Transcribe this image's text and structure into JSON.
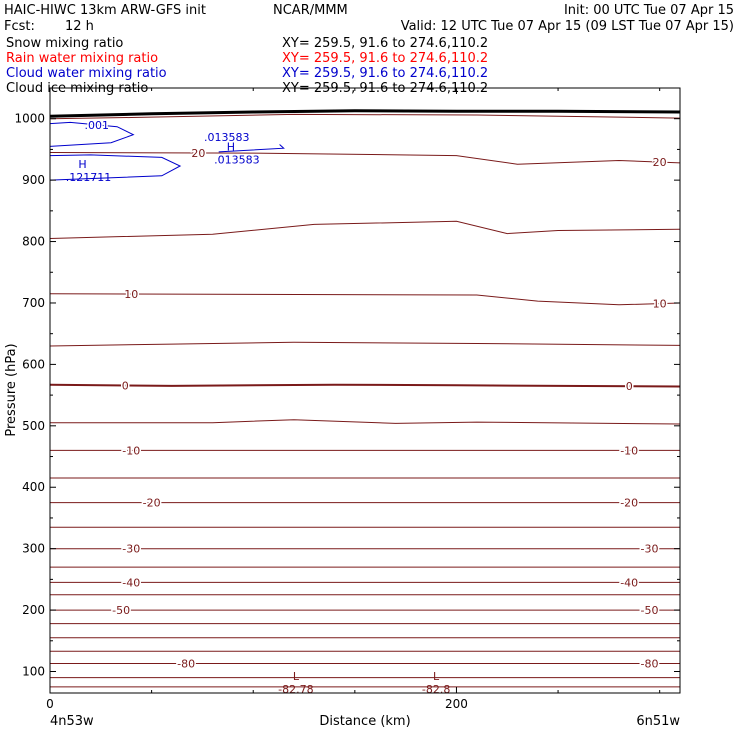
{
  "header": {
    "title_left": "HAIC-HIWC 13km ARW-GFS init",
    "org": "NCAR/MMM",
    "init": "Init: 00 UTC Tue 07 Apr 15",
    "fcst_label": "Fcst:",
    "fcst_value": "12 h",
    "valid": "Valid: 12 UTC Tue 07 Apr 15 (09 LST Tue 07 Apr 15)"
  },
  "fields": [
    {
      "name": "Snow mixing ratio",
      "xy": "XY= 259.5, 91.6 to 274.6,110.2",
      "color": "#000000"
    },
    {
      "name": "Rain water mixing ratio",
      "xy": "XY= 259.5, 91.6 to 274.6,110.2",
      "color": "#ff0000"
    },
    {
      "name": "Cloud water mixing ratio",
      "xy": "XY= 259.5, 91.6 to 274.6,110.2",
      "color": "#0000cc"
    },
    {
      "name": "Cloud ice mixing ratio",
      "xy": "XY= 259.5, 91.6 to 274.6,110.2",
      "color": "#000000"
    }
  ],
  "chart_data": {
    "type": "line",
    "subtype": "vertical cross-section contour plot",
    "xlabel": "Distance (km)",
    "ylabel": "Pressure (hPa)",
    "xlim": [
      0,
      310
    ],
    "ylim": [
      1050,
      65
    ],
    "x_ticks": [
      0,
      200
    ],
    "y_ticks": [
      100,
      200,
      300,
      400,
      500,
      600,
      700,
      800,
      900,
      1000
    ],
    "endpoint_left": "4n53w",
    "endpoint_right": "6n51w",
    "colors": {
      "temperature": "#7a1a1a",
      "cloud_water": "#0000cc",
      "ground": "#000000"
    },
    "temperature_contours": [
      {
        "level": -80,
        "label": "-80",
        "labels_at": [
          67,
          295
        ],
        "points": [
          [
            0,
            113
          ],
          [
            310,
            113
          ]
        ]
      },
      {
        "level": -50,
        "label": "-50",
        "labels_at": [
          35,
          295
        ],
        "points": [
          [
            0,
            200
          ],
          [
            310,
            200
          ]
        ]
      },
      {
        "level": -40,
        "label": "-40",
        "labels_at": [
          40,
          285
        ],
        "points": [
          [
            0,
            245
          ],
          [
            310,
            245
          ]
        ]
      },
      {
        "level": -30,
        "label": "-30",
        "labels_at": [
          40,
          295
        ],
        "points": [
          [
            0,
            300
          ],
          [
            310,
            300
          ]
        ]
      },
      {
        "level": -20,
        "label": "-20",
        "labels_at": [
          50,
          285
        ],
        "points": [
          [
            0,
            375
          ],
          [
            310,
            375
          ]
        ]
      },
      {
        "level": -10,
        "label": "-10",
        "labels_at": [
          40,
          285
        ],
        "points": [
          [
            0,
            460
          ],
          [
            310,
            460
          ]
        ]
      },
      {
        "level": 0,
        "label": "0",
        "labels_at": [
          37,
          285
        ],
        "points": [
          [
            0,
            567
          ],
          [
            60,
            565
          ],
          [
            140,
            567
          ],
          [
            200,
            566
          ],
          [
            310,
            564
          ]
        ]
      },
      {
        "level": 10,
        "label": "10",
        "labels_at": [
          40,
          300
        ],
        "points": [
          [
            0,
            715
          ],
          [
            100,
            714
          ],
          [
            210,
            713
          ],
          [
            240,
            703
          ],
          [
            280,
            697
          ],
          [
            310,
            700
          ]
        ]
      },
      {
        "level": 20,
        "label": "20",
        "labels_at": [
          73,
          300
        ],
        "points": [
          [
            0,
            945
          ],
          [
            100,
            944
          ],
          [
            200,
            940
          ],
          [
            230,
            926
          ],
          [
            280,
            932
          ],
          [
            310,
            928
          ]
        ]
      }
    ],
    "temperature_unlabeled": [
      {
        "points": [
          [
            0,
            75
          ],
          [
            310,
            75
          ]
        ]
      },
      {
        "points": [
          [
            0,
            90
          ],
          [
            310,
            90
          ]
        ]
      },
      {
        "points": [
          [
            0,
            133
          ],
          [
            310,
            133
          ]
        ]
      },
      {
        "points": [
          [
            0,
            155
          ],
          [
            310,
            155
          ]
        ]
      },
      {
        "points": [
          [
            0,
            178
          ],
          [
            310,
            178
          ]
        ]
      },
      {
        "points": [
          [
            0,
            225
          ],
          [
            310,
            225
          ]
        ]
      },
      {
        "points": [
          [
            0,
            270
          ],
          [
            310,
            270
          ]
        ]
      },
      {
        "points": [
          [
            0,
            335
          ],
          [
            310,
            335
          ]
        ]
      },
      {
        "points": [
          [
            0,
            415
          ],
          [
            310,
            415
          ]
        ]
      },
      {
        "points": [
          [
            0,
            505
          ],
          [
            80,
            505
          ],
          [
            120,
            510
          ],
          [
            170,
            504
          ],
          [
            210,
            506
          ],
          [
            310,
            503
          ]
        ]
      },
      {
        "points": [
          [
            0,
            630
          ],
          [
            60,
            633
          ],
          [
            120,
            636
          ],
          [
            210,
            634
          ],
          [
            310,
            631
          ]
        ]
      },
      {
        "points": [
          [
            0,
            805
          ],
          [
            80,
            812
          ],
          [
            130,
            828
          ],
          [
            200,
            833
          ],
          [
            225,
            813
          ],
          [
            250,
            818
          ],
          [
            310,
            820
          ]
        ]
      },
      {
        "points": [
          [
            0,
            1000
          ],
          [
            40,
            1002
          ],
          [
            120,
            1007
          ],
          [
            210,
            1006
          ],
          [
            310,
            1001
          ]
        ]
      }
    ],
    "cloud_water_contours": [
      {
        "label": ".001",
        "labels_at": [
          [
            23,
            990
          ]
        ],
        "points": [
          [
            0,
            955
          ],
          [
            30,
            961
          ],
          [
            41,
            974
          ],
          [
            33,
            987
          ],
          [
            10,
            994
          ],
          [
            0,
            992
          ]
        ]
      },
      {
        "label": ".013583",
        "labels_at": [
          [
            87,
            970
          ]
        ],
        "points": [
          [
            83,
            946
          ],
          [
            115,
            952
          ],
          [
            113,
            958
          ]
        ]
      }
    ],
    "cloud_water_open_outline": {
      "points": [
        [
          0,
          900
        ],
        [
          55,
          907
        ],
        [
          64,
          923
        ],
        [
          55,
          937
        ],
        [
          20,
          941
        ],
        [
          0,
          940
        ]
      ]
    },
    "extrema": [
      {
        "type": "L",
        "label": "L",
        "value": "-82.78",
        "x": 121,
        "p": 86
      },
      {
        "type": "L",
        "label": "L",
        "value": "-82.8",
        "x": 190,
        "p": 86
      },
      {
        "type": "H",
        "label": "H",
        "value": ".121711",
        "x": 16,
        "p": 920,
        "field": "cloud_water"
      },
      {
        "type": "H",
        "label": "H",
        "value": ".013583",
        "x": 89,
        "p": 948,
        "field": "cloud_water"
      }
    ],
    "ground": {
      "points": [
        [
          0,
          1004
        ],
        [
          50,
          1008
        ],
        [
          100,
          1011
        ],
        [
          150,
          1013
        ],
        [
          200,
          1012
        ],
        [
          250,
          1012
        ],
        [
          310,
          1011
        ]
      ]
    }
  }
}
